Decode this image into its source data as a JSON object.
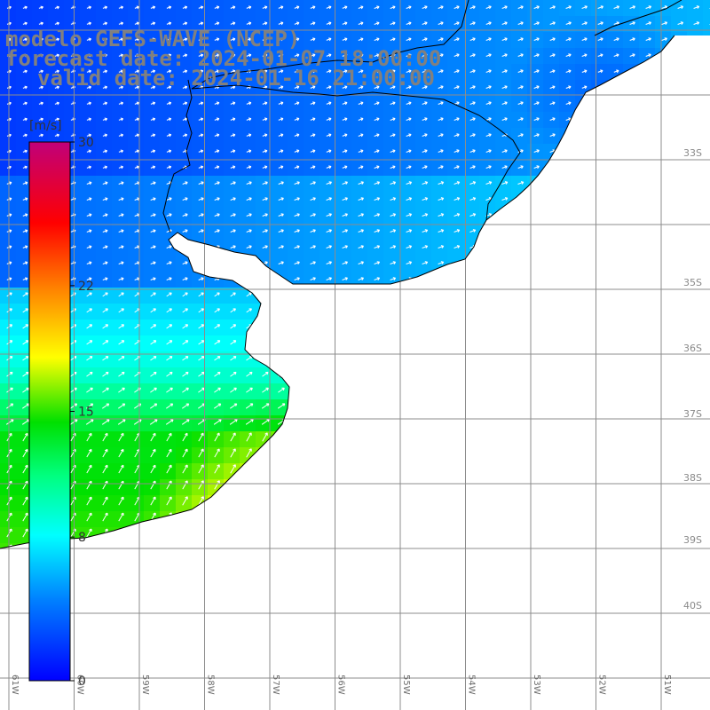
{
  "title": {
    "line1": "modelo GEFS-WAVE (NCEP)",
    "line2": "forecast date: 2024-01-07 18:00:00",
    "line3": "valid date: 2024-01-16 21:00:00"
  },
  "colorbar": {
    "unit": "[m/s]",
    "ticks": [
      "30",
      "22",
      "15",
      "8",
      "0"
    ],
    "tick_values": [
      30,
      22,
      15,
      8,
      0
    ],
    "colors": [
      "#0000ff",
      "#00aaff",
      "#00ffff",
      "#00ff00",
      "#ffff00",
      "#ff8000",
      "#ff0000",
      "#c00080"
    ]
  },
  "map": {
    "lat_labels": [
      "33S",
      "35S",
      "36S",
      "37S",
      "38S",
      "39S",
      "40S"
    ],
    "lon_labels": [
      "61W",
      "60W",
      "59W",
      "58W",
      "57W",
      "56W",
      "55W",
      "54W",
      "53W",
      "52W",
      "51W"
    ],
    "sea_color": "#ffffff",
    "coast_color": "#000000",
    "grid_color": "#8c8c8c"
  }
}
